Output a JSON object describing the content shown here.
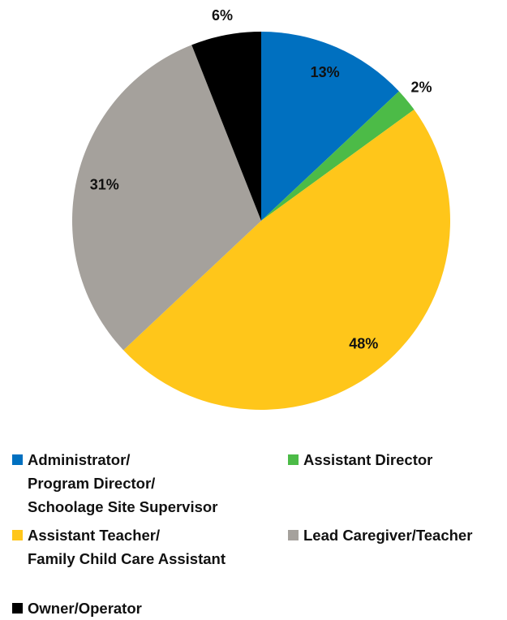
{
  "chart_data": {
    "type": "pie",
    "categories": [
      "Administrator/\nProgram Director/\nSchoolage Site Supervisor",
      "Assistant Director",
      "Assistant Teacher/\nFamily Child Care Assistant",
      "Lead Caregiver/Teacher",
      "Owner/Operator"
    ],
    "values": [
      13,
      2,
      48,
      31,
      6
    ],
    "value_labels": [
      "13%",
      "2%",
      "48%",
      "31%",
      "6%"
    ],
    "colors": [
      "#0070c0",
      "#4cbb47",
      "#ffc61a",
      "#a5a19c",
      "#000000"
    ],
    "legend": "bottom"
  }
}
